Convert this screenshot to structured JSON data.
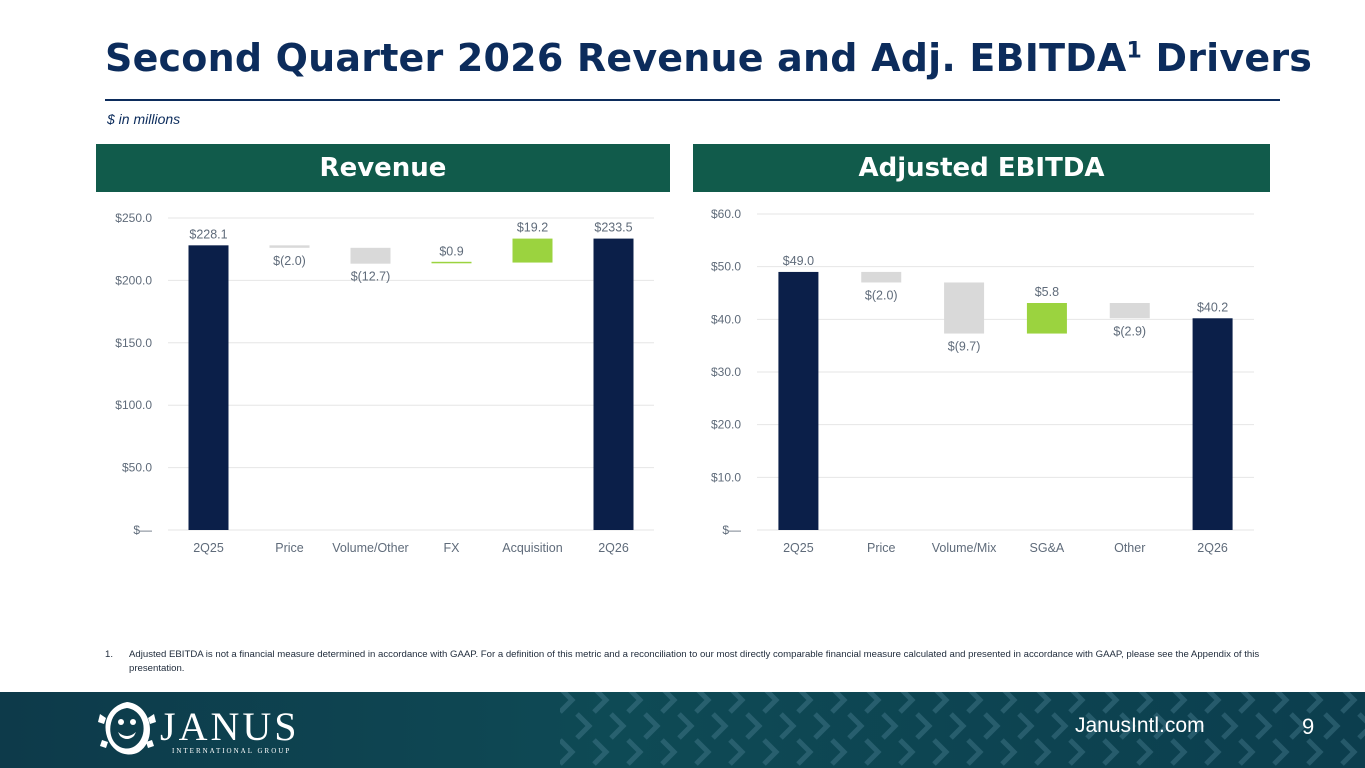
{
  "header": {
    "title": "Second Quarter 2026 Revenue and Adj. EBITDA",
    "title_sup": "1",
    "title_suffix": " Drivers",
    "subtitle": "$ in millions"
  },
  "panels": {
    "revenue_title": "Revenue",
    "ebitda_title": "Adjusted EBITDA"
  },
  "colors": {
    "total": "#0b1f49",
    "decrease": "#d9d9d9",
    "increase": "#9bd33f",
    "header_bg": "#115b4b",
    "title": "#0c2c5c"
  },
  "chart_data": [
    {
      "type": "bar",
      "subtype": "waterfall",
      "title": "Revenue",
      "categories": [
        "2Q25",
        "Price",
        "Volume/Other",
        "FX",
        "Acquisition",
        "2Q26"
      ],
      "values": [
        228.1,
        -2.0,
        -12.7,
        0.9,
        19.2,
        233.5
      ],
      "kinds": [
        "total",
        "delta",
        "delta",
        "delta",
        "delta",
        "total"
      ],
      "data_labels": [
        "$228.1",
        "$(2.0)",
        "$(12.7)",
        "$0.9",
        "$19.2",
        "$233.5"
      ],
      "ylim": [
        0,
        250
      ],
      "yticks": [
        0,
        50,
        100,
        150,
        200,
        250
      ],
      "ytick_labels": [
        "$—",
        "$50.0",
        "$100.0",
        "$150.0",
        "$200.0",
        "$250.0"
      ],
      "grid": true
    },
    {
      "type": "bar",
      "subtype": "waterfall",
      "title": "Adjusted EBITDA",
      "categories": [
        "2Q25",
        "Price",
        "Volume/Mix",
        "SG&A",
        "Other",
        "2Q26"
      ],
      "values": [
        49.0,
        -2.0,
        -9.7,
        5.8,
        -2.9,
        40.2
      ],
      "kinds": [
        "total",
        "delta",
        "delta",
        "delta",
        "delta",
        "total"
      ],
      "data_labels": [
        "$49.0",
        "$(2.0)",
        "$(9.7)",
        "$5.8",
        "$(2.9)",
        "$40.2"
      ],
      "ylim": [
        0,
        60
      ],
      "yticks": [
        0,
        10,
        20,
        30,
        40,
        50,
        60
      ],
      "ytick_labels": [
        "$—",
        "$10.0",
        "$20.0",
        "$30.0",
        "$40.0",
        "$50.0",
        "$60.0"
      ],
      "grid": true
    }
  ],
  "footnote": {
    "number": "1.",
    "text": "Adjusted EBITDA is not a financial measure determined in accordance with GAAP. For a definition of this metric and a reconciliation to our most directly comparable financial measure calculated and presented in accordance with GAAP, please see the Appendix of this presentation."
  },
  "footer": {
    "brand": "JANUS",
    "brand_sub": "INTERNATIONAL GROUP",
    "website": "JanusIntl.com",
    "page_number": "9"
  }
}
